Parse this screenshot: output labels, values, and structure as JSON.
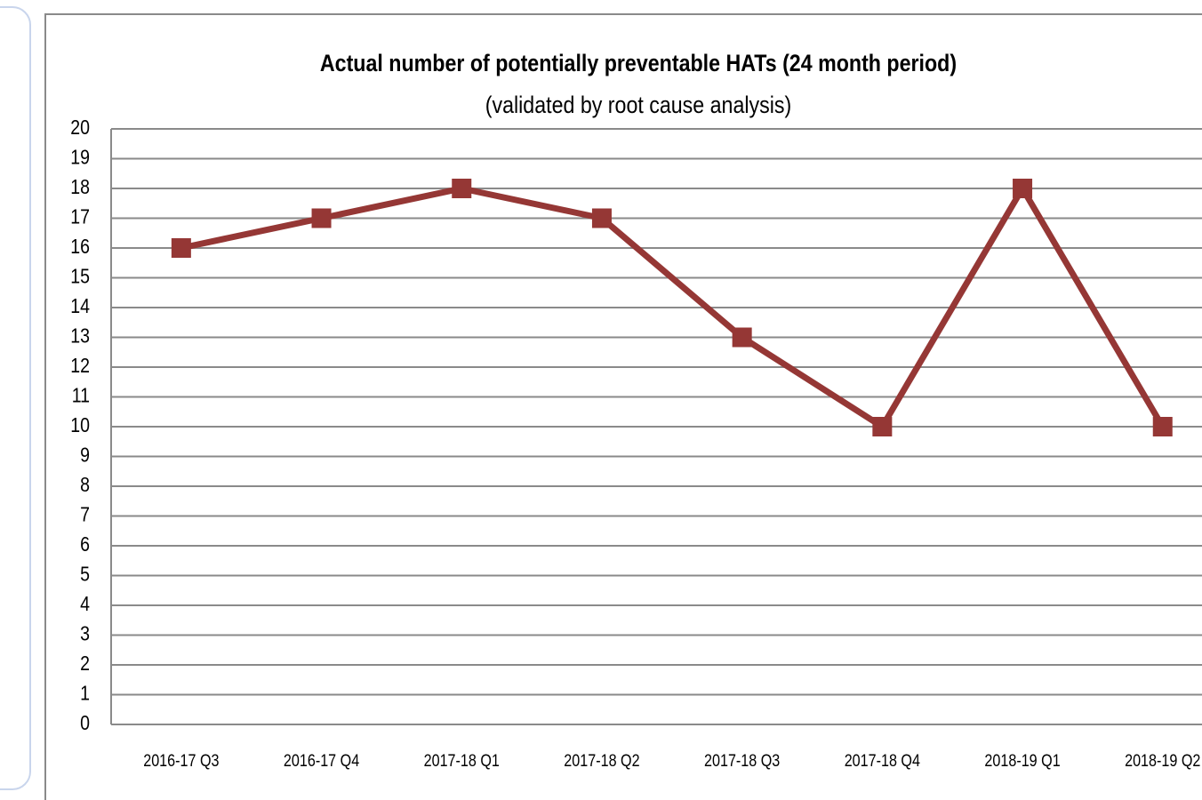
{
  "chart_data": {
    "type": "line",
    "title": "Actual number of potentially preventable HATs (24 month period)",
    "subtitle": "(validated by root cause analysis)",
    "categories": [
      "2016-17 Q3",
      "2016-17 Q4",
      "2017-18 Q1",
      "2017-18 Q2",
      "2017-18 Q3",
      "2017-18 Q4",
      "2018-19 Q1",
      "2018-19 Q2"
    ],
    "values": [
      16,
      17,
      18,
      17,
      13,
      10,
      18,
      10
    ],
    "color": "#953735",
    "ylim": [
      0,
      20
    ],
    "yticks": [
      0,
      1,
      2,
      3,
      4,
      5,
      6,
      7,
      8,
      9,
      10,
      11,
      12,
      13,
      14,
      15,
      16,
      17,
      18,
      19,
      20
    ],
    "grid": true
  }
}
